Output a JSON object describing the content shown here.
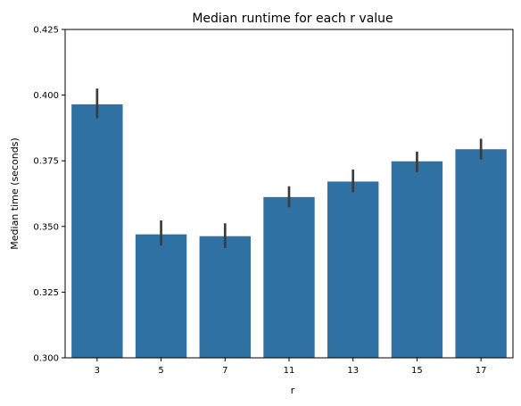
{
  "chart_data": {
    "type": "bar",
    "title": "Median runtime for each r value",
    "xlabel": "r",
    "ylabel": "Median time (seconds)",
    "categories": [
      "3",
      "5",
      "7",
      "11",
      "13",
      "15",
      "17"
    ],
    "values": [
      0.3965,
      0.347,
      0.3463,
      0.3612,
      0.3671,
      0.3748,
      0.3794
    ],
    "error_low": [
      0.3912,
      0.3427,
      0.3418,
      0.3573,
      0.363,
      0.3707,
      0.3755
    ],
    "error_high": [
      0.4025,
      0.3523,
      0.3512,
      0.3653,
      0.3717,
      0.3785,
      0.3834
    ],
    "ylim": [
      0.3,
      0.425
    ],
    "yticks": [
      "0.300",
      "0.325",
      "0.350",
      "0.375",
      "0.400",
      "0.425"
    ],
    "grid": false,
    "bar_color": "#2f71a2",
    "error_color": "#3c3c3c"
  }
}
